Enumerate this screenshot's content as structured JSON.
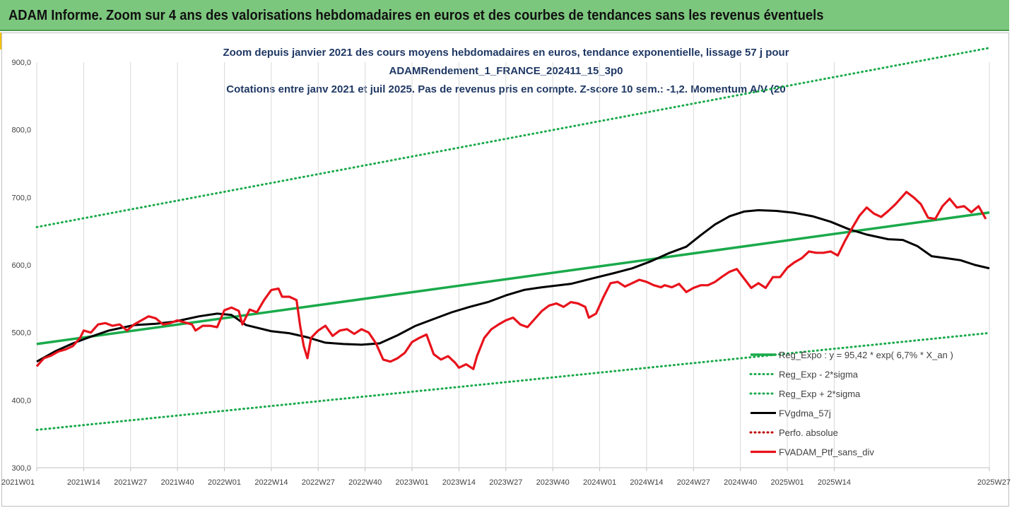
{
  "header": {
    "title": "ADAM Informe. Zoom sur 4 ans des valorisations hebdomadaires en euros et des courbes de tendances sans les revenus éventuels"
  },
  "colors": {
    "banner": "#7cc77e",
    "trend": "#1aaa4b",
    "smoothed": "#000000",
    "portfolio": "#e8121b",
    "perf_absolue": "#c00000"
  },
  "chart_data": {
    "type": "line",
    "title_lines": [
      "Zoom depuis janvier 2021 des cours moyens hebdomadaires  en euros, tendance exponentielle, lissage 57 j pour",
      "ADAMRendement_1_FRANCE_202411_15_3p0",
      "Cotations entre janv 2021 et juil 2025. Pas de revenus pris en compte. Z-score 10 sem.: -1,2. Momentum A/V (20"
    ],
    "x_labels": [
      "2021W01",
      "2021W14",
      "2021W27",
      "2021W40",
      "2022W01",
      "2022W14",
      "2022W27",
      "2022W40",
      "2023W01",
      "2023W14",
      "2023W27",
      "2023W40",
      "2024W01",
      "2024W14",
      "2024W27",
      "2024W40",
      "2025W01",
      "2025W14",
      "2025W27"
    ],
    "y_ticks": [
      "300,0",
      "400,0",
      "500,0",
      "600,0",
      "700,0",
      "800,0",
      "900,0"
    ],
    "ylim": [
      300,
      900
    ],
    "grid": "vertical",
    "legend_position": "bottom-right",
    "x_units": "weeks since 2021W01 (13 weeks per tick label)",
    "series": [
      {
        "name": "Reg_Expo : y = 95,42 * exp( 6,7% * X_an )",
        "style": "solid",
        "color": "#1aaa4b",
        "points": [
          [
            0,
            483
          ],
          [
            232,
            654
          ]
        ]
      },
      {
        "name": "Reg_Exp - 2*sigma",
        "style": "dotted",
        "color": "#1aaa4b",
        "points": [
          [
            0,
            356
          ],
          [
            232,
            482
          ]
        ]
      },
      {
        "name": "Reg_Exp + 2*sigma",
        "style": "dotted",
        "color": "#1aaa4b",
        "points": [
          [
            0,
            656
          ],
          [
            232,
            889
          ]
        ]
      },
      {
        "name": "FVgdma_57j",
        "style": "solid",
        "color": "#000000",
        "points": [
          [
            0,
            457
          ],
          [
            5,
            472
          ],
          [
            10,
            484
          ],
          [
            14,
            492
          ],
          [
            20,
            503
          ],
          [
            27,
            511
          ],
          [
            33,
            513
          ],
          [
            38,
            516
          ],
          [
            45,
            524
          ],
          [
            50,
            528
          ],
          [
            54,
            526
          ],
          [
            58,
            511
          ],
          [
            65,
            502
          ],
          [
            70,
            499
          ],
          [
            75,
            493
          ],
          [
            80,
            485
          ],
          [
            85,
            483
          ],
          [
            90,
            482
          ],
          [
            95,
            484
          ],
          [
            100,
            496
          ],
          [
            105,
            510
          ],
          [
            110,
            520
          ],
          [
            115,
            530
          ],
          [
            120,
            538
          ],
          [
            125,
            545
          ],
          [
            130,
            555
          ],
          [
            135,
            563
          ],
          [
            140,
            567
          ],
          [
            148,
            572
          ],
          [
            154,
            580
          ],
          [
            160,
            588
          ],
          [
            165,
            595
          ],
          [
            170,
            605
          ],
          [
            175,
            617
          ],
          [
            180,
            627
          ],
          [
            184,
            644
          ],
          [
            188,
            660
          ],
          [
            192,
            672
          ],
          [
            196,
            679
          ],
          [
            200,
            681
          ],
          [
            205,
            680
          ],
          [
            210,
            677
          ],
          [
            215,
            672
          ],
          [
            220,
            664
          ],
          [
            225,
            653
          ],
          [
            230,
            645
          ],
          [
            236,
            638
          ],
          [
            240,
            637
          ],
          [
            244,
            628
          ],
          [
            248,
            613
          ],
          [
            252,
            610
          ],
          [
            256,
            607
          ],
          [
            260,
            600
          ],
          [
            264,
            595
          ]
        ]
      },
      {
        "name": "Perfo. absolue",
        "style": "dotted",
        "color": "#c00000",
        "points": []
      },
      {
        "name": "FVADAM_Ptf_sans_div",
        "style": "solid",
        "color": "#e8121b",
        "points": [
          [
            0,
            450
          ],
          [
            2,
            462
          ],
          [
            4,
            466
          ],
          [
            6,
            472
          ],
          [
            8,
            475
          ],
          [
            10,
            480
          ],
          [
            12,
            492
          ],
          [
            13,
            503
          ],
          [
            15,
            500
          ],
          [
            17,
            512
          ],
          [
            19,
            514
          ],
          [
            21,
            510
          ],
          [
            23,
            512
          ],
          [
            25,
            503
          ],
          [
            27,
            512
          ],
          [
            29,
            518
          ],
          [
            31,
            524
          ],
          [
            33,
            521
          ],
          [
            35,
            512
          ],
          [
            37,
            514
          ],
          [
            39,
            518
          ],
          [
            41,
            515
          ],
          [
            43,
            512
          ],
          [
            44,
            503
          ],
          [
            46,
            510
          ],
          [
            48,
            510
          ],
          [
            50,
            508
          ],
          [
            52,
            533
          ],
          [
            54,
            537
          ],
          [
            56,
            532
          ],
          [
            57,
            512
          ],
          [
            59,
            534
          ],
          [
            61,
            530
          ],
          [
            63,
            548
          ],
          [
            65,
            563
          ],
          [
            67,
            565
          ],
          [
            68,
            553
          ],
          [
            70,
            553
          ],
          [
            72,
            548
          ],
          [
            73,
            510
          ],
          [
            74,
            480
          ],
          [
            75,
            462
          ],
          [
            76,
            492
          ],
          [
            78,
            503
          ],
          [
            80,
            510
          ],
          [
            82,
            495
          ],
          [
            84,
            503
          ],
          [
            86,
            505
          ],
          [
            88,
            498
          ],
          [
            90,
            505
          ],
          [
            92,
            500
          ],
          [
            94,
            484
          ],
          [
            96,
            460
          ],
          [
            98,
            457
          ],
          [
            100,
            462
          ],
          [
            102,
            470
          ],
          [
            104,
            486
          ],
          [
            106,
            492
          ],
          [
            108,
            497
          ],
          [
            110,
            468
          ],
          [
            112,
            460
          ],
          [
            114,
            465
          ],
          [
            116,
            455
          ],
          [
            117,
            448
          ],
          [
            119,
            453
          ],
          [
            121,
            446
          ],
          [
            122,
            465
          ],
          [
            124,
            492
          ],
          [
            126,
            505
          ],
          [
            128,
            512
          ],
          [
            130,
            518
          ],
          [
            132,
            522
          ],
          [
            134,
            512
          ],
          [
            136,
            508
          ],
          [
            138,
            520
          ],
          [
            140,
            532
          ],
          [
            142,
            540
          ],
          [
            144,
            543
          ],
          [
            146,
            538
          ],
          [
            148,
            545
          ],
          [
            150,
            543
          ],
          [
            152,
            538
          ],
          [
            153,
            522
          ],
          [
            155,
            528
          ],
          [
            157,
            552
          ],
          [
            159,
            573
          ],
          [
            161,
            575
          ],
          [
            163,
            568
          ],
          [
            165,
            573
          ],
          [
            167,
            578
          ],
          [
            169,
            575
          ],
          [
            171,
            570
          ],
          [
            173,
            567
          ],
          [
            174,
            570
          ],
          [
            176,
            567
          ],
          [
            178,
            572
          ],
          [
            180,
            560
          ],
          [
            182,
            566
          ],
          [
            184,
            570
          ],
          [
            186,
            570
          ],
          [
            188,
            575
          ],
          [
            190,
            583
          ],
          [
            192,
            590
          ],
          [
            194,
            594
          ],
          [
            196,
            580
          ],
          [
            198,
            566
          ],
          [
            200,
            573
          ],
          [
            202,
            566
          ],
          [
            204,
            582
          ],
          [
            206,
            582
          ],
          [
            208,
            596
          ],
          [
            210,
            604
          ],
          [
            212,
            610
          ],
          [
            214,
            620
          ],
          [
            216,
            618
          ],
          [
            218,
            618
          ],
          [
            220,
            620
          ],
          [
            222,
            614
          ],
          [
            224,
            636
          ],
          [
            226,
            655
          ],
          [
            228,
            673
          ],
          [
            230,
            685
          ],
          [
            232,
            676
          ],
          [
            234,
            671
          ],
          [
            236,
            680
          ],
          [
            238,
            690
          ],
          [
            240,
            702
          ],
          [
            241,
            708
          ],
          [
            243,
            700
          ],
          [
            245,
            690
          ],
          [
            247,
            670
          ],
          [
            249,
            668
          ],
          [
            251,
            687
          ],
          [
            253,
            698
          ],
          [
            255,
            685
          ],
          [
            257,
            687
          ],
          [
            259,
            678
          ],
          [
            261,
            687
          ],
          [
            263,
            668
          ]
        ]
      }
    ],
    "x_total_weeks": 232
  },
  "legend": {
    "items": [
      "Reg_Expo : y = 95,42 * exp( 6,7% * X_an )",
      "Reg_Exp - 2*sigma",
      "Reg_Exp + 2*sigma",
      "FVgdma_57j",
      "Perfo. absolue",
      "FVADAM_Ptf_sans_div"
    ]
  }
}
